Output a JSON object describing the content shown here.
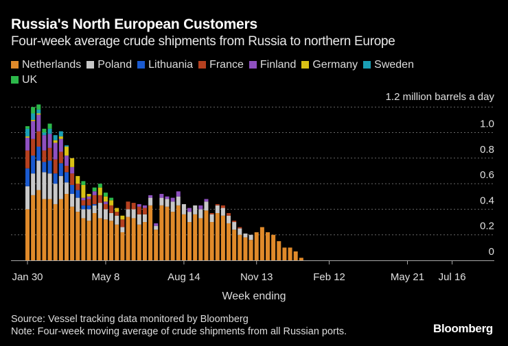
{
  "header": {
    "title": "Russia's North European Customers",
    "subtitle": "Four-week average crude shipments from Russia to northern Europe"
  },
  "footer": {
    "source": "Source: Vessel tracking data monitored by Bloomberg",
    "note": "Note: Four-week moving average of crude shipments from all Russian ports.",
    "brand": "Bloomberg"
  },
  "chart_data": {
    "type": "bar",
    "stacked": true,
    "title": "Russia's North European Customers",
    "subtitle": "Four-week average crude shipments from Russia to northern Europe",
    "xlabel": "Week ending",
    "ylabel": "million barrels a day",
    "unit_label": "1.2 million barrels a day",
    "ylim": [
      0,
      1.2
    ],
    "yticks": [
      0,
      0.2,
      0.4,
      0.6,
      0.8,
      1.0,
      1.2
    ],
    "ytick_labels": [
      "0",
      "0.2",
      "0.4",
      "0.6",
      "0.8",
      "1.0",
      "1.2"
    ],
    "grid": true,
    "legend_position": "top",
    "x_tick_labels": [
      {
        "label": "Jan 30",
        "week_index": 0
      },
      {
        "label": "May 8",
        "week_index": 14
      },
      {
        "label": "Aug 14",
        "week_index": 28
      },
      {
        "label": "Nov 13",
        "week_index": 41
      },
      {
        "label": "Feb 12",
        "week_index": 54
      },
      {
        "label": "May 21",
        "week_index": 68
      },
      {
        "label": "Jul 16",
        "week_index": 76
      }
    ],
    "x_range_weeks": [
      0,
      83
    ],
    "categories_note": "Weekly bars starting week ending Jan 30",
    "series": [
      {
        "name": "Netherlands",
        "color": "#e08a2a",
        "values": [
          0.4,
          0.51,
          0.55,
          0.48,
          0.48,
          0.44,
          0.48,
          0.52,
          0.42,
          0.38,
          0.33,
          0.31,
          0.37,
          0.33,
          0.32,
          0.31,
          0.28,
          0.22,
          0.34,
          0.33,
          0.28,
          0.3,
          0.43,
          0.24,
          0.43,
          0.42,
          0.38,
          0.43,
          0.36,
          0.3,
          0.36,
          0.33,
          0.39,
          0.3,
          0.37,
          0.35,
          0.29,
          0.24,
          0.2,
          0.18,
          0.16,
          0.22,
          0.26,
          0.22,
          0.2,
          0.15,
          0.1,
          0.1,
          0.07,
          0.02
        ]
      },
      {
        "name": "Poland",
        "color": "#c8c8c8",
        "values": [
          0.18,
          0.17,
          0.23,
          0.21,
          0.2,
          0.16,
          0.18,
          0.09,
          0.1,
          0.11,
          0.07,
          0.09,
          0.06,
          0.12,
          0.08,
          0.06,
          0.07,
          0.04,
          0.06,
          0.07,
          0.08,
          0.06,
          0.06,
          0.03,
          0.06,
          0.06,
          0.08,
          0.07,
          0.08,
          0.08,
          0.07,
          0.07,
          0.07,
          0.06,
          0.06,
          0.06,
          0.06,
          0.06,
          0.05,
          0.03,
          0.04,
          0.0,
          0.0,
          0.0,
          0.0,
          0.0,
          0.0,
          0.0,
          0.0,
          0.0
        ]
      },
      {
        "name": "Lithuania",
        "color": "#1a5ad0",
        "values": [
          0.14,
          0.14,
          0.11,
          0.08,
          0.1,
          0.08,
          0.1,
          0.08,
          0.07,
          0.06,
          0.03,
          0.03,
          0.01,
          0.0,
          0.0,
          0.0,
          0.0,
          0.0,
          0.0,
          0.0,
          0.0,
          0.0,
          0.0,
          0.0,
          0.0,
          0.0,
          0.0,
          0.0,
          0.0,
          0.0,
          0.0,
          0.0,
          0.0,
          0.0,
          0.0,
          0.0,
          0.0,
          0.0,
          0.0,
          0.0,
          0.0,
          0.0,
          0.0,
          0.0,
          0.0,
          0.0,
          0.0,
          0.0,
          0.0,
          0.0
        ]
      },
      {
        "name": "France",
        "color": "#b5401f",
        "values": [
          0.14,
          0.13,
          0.12,
          0.09,
          0.1,
          0.11,
          0.09,
          0.05,
          0.09,
          0.05,
          0.04,
          0.05,
          0.07,
          0.06,
          0.04,
          0.06,
          0.03,
          0.06,
          0.06,
          0.05,
          0.06,
          0.05,
          0.0,
          0.0,
          0.0,
          0.0,
          0.0,
          0.0,
          0.0,
          0.0,
          0.0,
          0.0,
          0.0,
          0.01,
          0.01,
          0.02,
          0.02,
          0.01,
          0.01,
          0.0,
          0.0,
          0.0,
          0.0,
          0.0,
          0.0,
          0.0,
          0.0,
          0.0,
          0.0,
          0.0
        ]
      },
      {
        "name": "Finland",
        "color": "#8e50c0",
        "values": [
          0.1,
          0.14,
          0.13,
          0.12,
          0.11,
          0.13,
          0.1,
          0.08,
          0.05,
          0.0,
          0.02,
          0.02,
          0.03,
          0.0,
          0.02,
          0.0,
          0.0,
          0.0,
          0.0,
          0.0,
          0.02,
          0.02,
          0.02,
          0.02,
          0.03,
          0.02,
          0.03,
          0.04,
          0.0,
          0.03,
          0.0,
          0.03,
          0.02,
          0.0,
          0.0,
          0.0,
          0.0,
          0.0,
          0.0,
          0.0,
          0.0,
          0.0,
          0.0,
          0.0,
          0.0,
          0.0,
          0.0,
          0.0,
          0.0,
          0.0
        ]
      },
      {
        "name": "Germany",
        "color": "#d9c015",
        "values": [
          0.01,
          0.01,
          0.01,
          0.0,
          0.0,
          0.02,
          0.02,
          0.07,
          0.07,
          0.06,
          0.1,
          0.02,
          0.0,
          0.06,
          0.04,
          0.04,
          0.03,
          0.03,
          0.0,
          0.0,
          0.0,
          0.0,
          0.0,
          0.0,
          0.0,
          0.0,
          0.0,
          0.0,
          0.0,
          0.0,
          0.0,
          0.0,
          0.0,
          0.0,
          0.0,
          0.0,
          0.0,
          0.0,
          0.0,
          0.0,
          0.0,
          0.0,
          0.0,
          0.0,
          0.0,
          0.0,
          0.0,
          0.0,
          0.0,
          0.0
        ]
      },
      {
        "name": "Sweden",
        "color": "#1a9fb5",
        "values": [
          0.06,
          0.05,
          0.03,
          0.02,
          0.04,
          0.04,
          0.04,
          0.01,
          0.0,
          0.0,
          0.0,
          0.0,
          0.0,
          0.0,
          0.0,
          0.0,
          0.0,
          0.0,
          0.0,
          0.0,
          0.0,
          0.0,
          0.0,
          0.0,
          0.0,
          0.0,
          0.0,
          0.0,
          0.0,
          0.0,
          0.0,
          0.0,
          0.0,
          0.0,
          0.0,
          0.0,
          0.0,
          0.0,
          0.0,
          0.0,
          0.0,
          0.0,
          0.0,
          0.0,
          0.0,
          0.0,
          0.0,
          0.0,
          0.0,
          0.0
        ]
      },
      {
        "name": "UK",
        "color": "#2cb84a",
        "values": [
          0.02,
          0.05,
          0.04,
          0.03,
          0.04,
          0.0,
          0.0,
          0.0,
          0.0,
          0.0,
          0.03,
          0.0,
          0.03,
          0.03,
          0.03,
          0.02,
          0.0,
          0.0,
          0.0,
          0.0,
          0.0,
          0.0,
          0.0,
          0.0,
          0.0,
          0.0,
          0.0,
          0.0,
          0.0,
          0.0,
          0.0,
          0.0,
          0.0,
          0.0,
          0.0,
          0.0,
          0.0,
          0.0,
          0.0,
          0.0,
          0.0,
          0.0,
          0.0,
          0.0,
          0.0,
          0.0,
          0.0,
          0.0,
          0.0,
          0.0
        ]
      }
    ]
  }
}
